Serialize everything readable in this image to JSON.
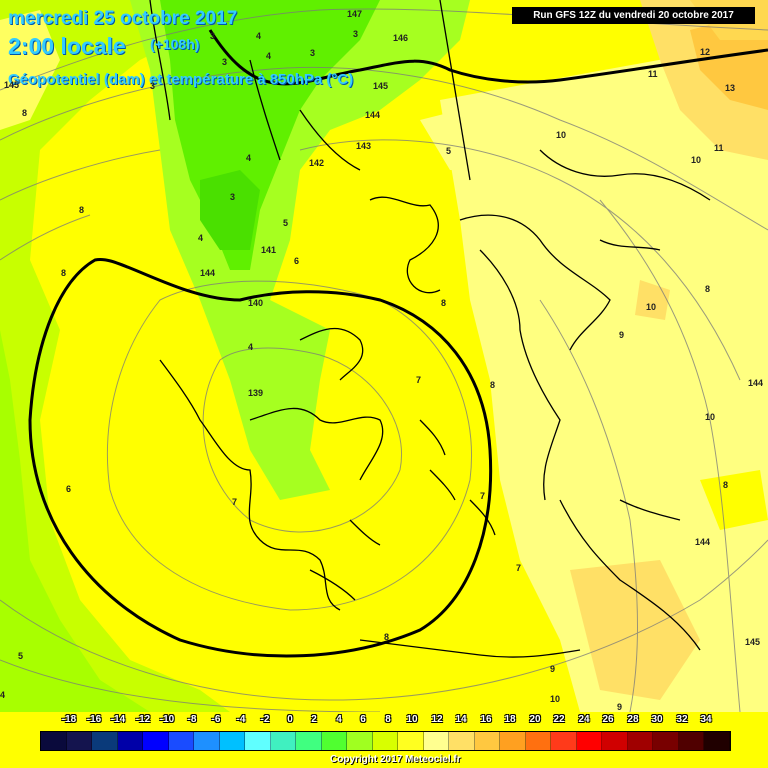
{
  "header": {
    "date": "mercredi 25 octobre 2017",
    "local_time": "2:00 locale",
    "offset": "(+108h)",
    "variable": "Géopotentiel (dam) et température à 850hPa (°C)",
    "run": "Run GFS 12Z du vendredi 20 octobre 2017"
  },
  "scale": {
    "labels": [
      "-18",
      "-16",
      "-14",
      "-12",
      "-10",
      "-8",
      "-6",
      "-4",
      "-2",
      "0",
      "2",
      "4",
      "6",
      "8",
      "10",
      "12",
      "14",
      "16",
      "18",
      "20",
      "22",
      "24",
      "26",
      "28",
      "30",
      "32",
      "34"
    ],
    "colors": [
      "#0a0a3c",
      "#14144e",
      "#0a3a7a",
      "#0000a8",
      "#0000ff",
      "#1a4cff",
      "#1e90ff",
      "#00c0ff",
      "#60ffff",
      "#40f0c0",
      "#40ff80",
      "#50ff30",
      "#a0ff20",
      "#d8ff00",
      "#ffff20",
      "#ffff90",
      "#ffe066",
      "#ffc840",
      "#ffa020",
      "#ff7010",
      "#ff3a1a",
      "#ff0000",
      "#d00000",
      "#a00000",
      "#780000",
      "#500000",
      "#200000"
    ]
  },
  "copyright": "Copyright 2017 Meteociel.fr",
  "map_labels": {
    "geopotential": [
      "147",
      "146",
      "145",
      "144",
      "143",
      "142",
      "141",
      "140",
      "139",
      "144",
      "145",
      "145",
      "144",
      "144"
    ],
    "temperature": [
      "3",
      "4",
      "3",
      "4",
      "3",
      "5",
      "4",
      "4",
      "3",
      "4",
      "6",
      "5",
      "4",
      "7",
      "7",
      "8",
      "8",
      "8",
      "8",
      "7",
      "7",
      "6",
      "5",
      "8",
      "8",
      "8",
      "9",
      "9",
      "10",
      "10",
      "10",
      "10",
      "10",
      "11",
      "11",
      "12",
      "13",
      "8",
      "9",
      "3",
      "3"
    ]
  }
}
